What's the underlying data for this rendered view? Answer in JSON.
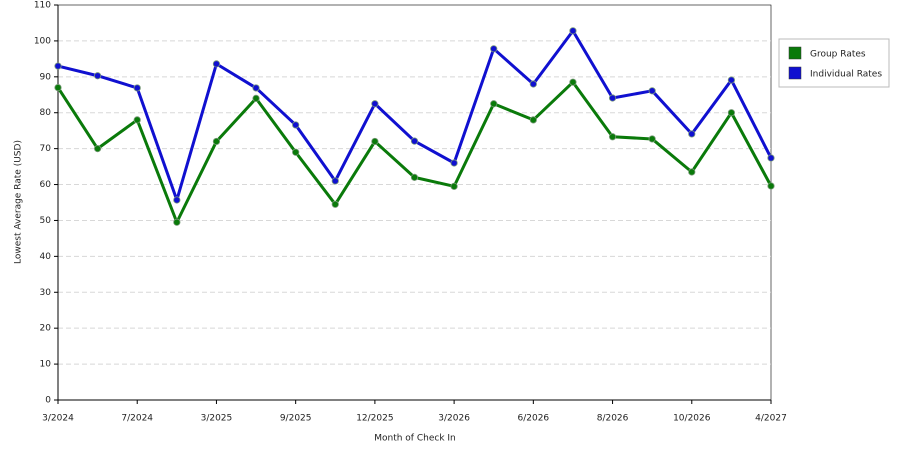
{
  "chart_data": {
    "type": "line",
    "x_label": "Month of Check In",
    "y_label": "Lowest Average Rate (USD)",
    "categories": [
      "3/2024",
      null,
      "7/2024",
      null,
      "3/2025",
      null,
      "9/2025",
      null,
      "12/2025",
      null,
      "3/2026",
      null,
      "6/2026",
      null,
      "8/2026",
      null,
      "10/2026",
      null,
      "4/2027"
    ],
    "series": [
      {
        "name": "Group Rates",
        "color": "#0a7a0a",
        "values": [
          87,
          70,
          78,
          49.5,
          72,
          84,
          69,
          54.5,
          72,
          62,
          59.5,
          82.5,
          78,
          88.5,
          73.3,
          72.7,
          63.5,
          80,
          59.6
        ]
      },
      {
        "name": "Individual Rates",
        "color": "#1010d0",
        "values": [
          93,
          90.3,
          86.9,
          55.7,
          93.6,
          86.9,
          76.6,
          61,
          82.5,
          72.1,
          66,
          97.8,
          88,
          102.8,
          84.1,
          86.1,
          74.1,
          89.1,
          67.4
        ]
      }
    ],
    "ylim": [
      0,
      110
    ],
    "yticks": [
      0,
      10,
      20,
      30,
      40,
      50,
      60,
      70,
      80,
      90,
      100,
      110
    ],
    "grid": true,
    "legend": "right"
  }
}
